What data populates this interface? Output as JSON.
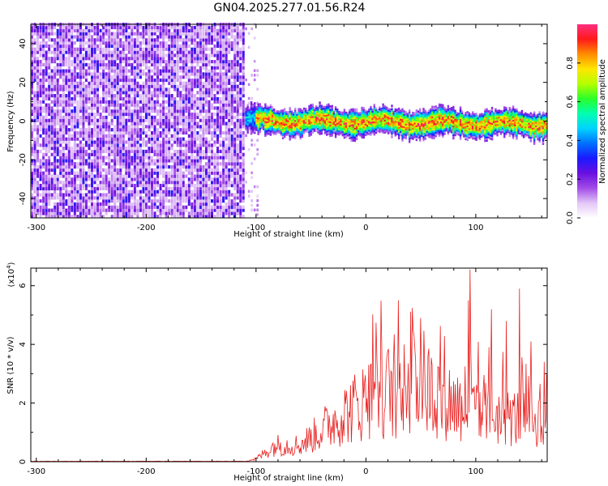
{
  "title": "GN04.2025.277.01.56.R24",
  "chart_data": [
    {
      "type": "heatmap",
      "xlabel": "Height of straight line (km)",
      "ylabel": "Frequency (Hz)",
      "xlim": [
        -305,
        165
      ],
      "ylim": [
        -50,
        50
      ],
      "x_ticks": [
        -300,
        -200,
        -100,
        0,
        100
      ],
      "y_ticks": [
        40,
        20,
        0,
        -20,
        -40
      ],
      "colorbar": {
        "label": "Normalized spectral amplitude",
        "range": [
          0,
          1
        ],
        "ticks": [
          "0.0",
          "0.2",
          "0.4",
          "0.6",
          "0.8"
        ],
        "colors": [
          "#ffffff",
          "#e3c6f6",
          "#a24ce7",
          "#6a0fe0",
          "#1a1aff",
          "#0070ff",
          "#00d2ff",
          "#00ffb0",
          "#2aff2a",
          "#b4ff00",
          "#ffe600",
          "#ff8c00",
          "#ff1a1a",
          "#ff2f80"
        ]
      },
      "noise_region": {
        "x_range": [
          -305,
          -110
        ],
        "freq_range": [
          -50,
          50
        ],
        "amplitude": "0.05-0.15"
      },
      "signal_band": {
        "x_range": [
          -110,
          165
        ],
        "center_hz": [
          0,
          -2
        ],
        "half_width_hz": [
          3,
          6
        ],
        "peak_amplitude": 1.0
      }
    },
    {
      "type": "line",
      "xlabel": "Height of straight line (km)",
      "ylabel": "SNR (10 * v/v)",
      "y_multiplier": "(x10",
      "y_multiplier_exp": "4",
      "xlim": [
        -305,
        165
      ],
      "ylim": [
        0,
        6.6
      ],
      "x_ticks": [
        -300,
        -200,
        -100,
        0,
        100
      ],
      "y_ticks": [
        0,
        2,
        4,
        6
      ],
      "color": "#e8201f",
      "envelope": [
        {
          "x": -305,
          "y": 0.0
        },
        {
          "x": -110,
          "y": 0.02
        },
        {
          "x": -100,
          "y": 0.1
        },
        {
          "x": -82,
          "y": 0.6
        },
        {
          "x": -60,
          "y": 0.6
        },
        {
          "x": -45,
          "y": 1.0
        },
        {
          "x": -25,
          "y": 1.6
        },
        {
          "x": 0,
          "y": 2.2
        },
        {
          "x": 25,
          "y": 2.6
        },
        {
          "x": 50,
          "y": 2.8
        },
        {
          "x": 75,
          "y": 2.2
        },
        {
          "x": 100,
          "y": 1.8
        },
        {
          "x": 130,
          "y": 1.6
        },
        {
          "x": 165,
          "y": 1.5
        }
      ],
      "peaks": [
        {
          "x": 95,
          "y": 6.55
        },
        {
          "x": 93,
          "y": 5.5
        },
        {
          "x": 128,
          "y": 4.8
        },
        {
          "x": 140,
          "y": 5.9
        },
        {
          "x": 114,
          "y": 5.2
        },
        {
          "x": 50,
          "y": 4.9
        },
        {
          "x": 35,
          "y": 4.0
        },
        {
          "x": 150,
          "y": 4.1
        }
      ]
    }
  ]
}
